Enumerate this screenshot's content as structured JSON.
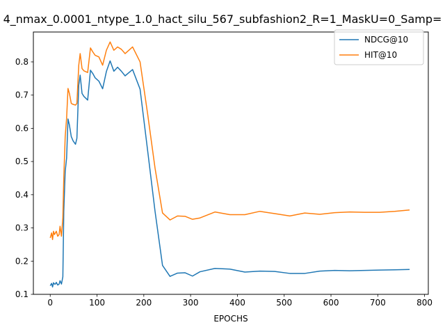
{
  "chart_data": {
    "type": "line",
    "title": "4_nmax_0.0001_ntype_1.0_hact_silu_567_subfashion2_R=1_MaskU=0_Samp=",
    "xlabel": "EPOCHS",
    "ylabel": "",
    "xlim": [
      -36,
      808
    ],
    "ylim": [
      0.1,
      0.89
    ],
    "xticks": [
      0,
      100,
      200,
      300,
      400,
      500,
      600,
      700,
      800
    ],
    "yticks": [
      0.1,
      0.2,
      0.3,
      0.4,
      0.5,
      0.6,
      0.7,
      0.8
    ],
    "xtick_labels": [
      "0",
      "100",
      "200",
      "300",
      "400",
      "500",
      "600",
      "700",
      "800"
    ],
    "ytick_labels": [
      "0.1",
      "0.2",
      "0.3",
      "0.4",
      "0.5",
      "0.6",
      "0.7",
      "0.8"
    ],
    "grid": false,
    "legend": "top-right",
    "series": [
      {
        "name": "NDCG@10",
        "color": "#1f77b4",
        "x": [
          0,
          3,
          5,
          7,
          9,
          11,
          13,
          16,
          19,
          21,
          24,
          27,
          29,
          32,
          35,
          38,
          41,
          45,
          49,
          54,
          57,
          61,
          64,
          68,
          72,
          80,
          86,
          91,
          96,
          104,
          112,
          120,
          128,
          136,
          144,
          152,
          160,
          176,
          192,
          208,
          224,
          240,
          256,
          272,
          288,
          304,
          320,
          352,
          384,
          416,
          448,
          480,
          512,
          544,
          576,
          608,
          640,
          672,
          704,
          736,
          768
        ],
        "y": [
          0.126,
          0.133,
          0.122,
          0.135,
          0.131,
          0.131,
          0.136,
          0.128,
          0.131,
          0.141,
          0.131,
          0.153,
          0.35,
          0.47,
          0.51,
          0.628,
          0.61,
          0.575,
          0.562,
          0.552,
          0.57,
          0.73,
          0.76,
          0.705,
          0.696,
          0.685,
          0.775,
          0.765,
          0.752,
          0.742,
          0.719,
          0.771,
          0.803,
          0.772,
          0.784,
          0.772,
          0.758,
          0.777,
          0.718,
          0.535,
          0.35,
          0.187,
          0.154,
          0.164,
          0.165,
          0.155,
          0.168,
          0.178,
          0.176,
          0.167,
          0.17,
          0.169,
          0.163,
          0.163,
          0.17,
          0.172,
          0.171,
          0.172,
          0.173,
          0.174,
          0.175
        ]
      },
      {
        "name": "HIT@10",
        "color": "#ff7f0e",
        "x": [
          0,
          3,
          5,
          7,
          9,
          11,
          13,
          16,
          19,
          21,
          24,
          27,
          29,
          32,
          35,
          38,
          41,
          45,
          49,
          54,
          57,
          61,
          64,
          68,
          72,
          80,
          86,
          91,
          96,
          104,
          112,
          120,
          128,
          136,
          144,
          152,
          160,
          176,
          192,
          208,
          224,
          240,
          256,
          272,
          288,
          304,
          320,
          352,
          384,
          416,
          448,
          480,
          512,
          544,
          576,
          608,
          640,
          672,
          704,
          736,
          768
        ],
        "y": [
          0.27,
          0.285,
          0.265,
          0.29,
          0.28,
          0.285,
          0.29,
          0.275,
          0.28,
          0.305,
          0.275,
          0.33,
          0.45,
          0.575,
          0.63,
          0.72,
          0.705,
          0.675,
          0.672,
          0.67,
          0.675,
          0.79,
          0.825,
          0.78,
          0.773,
          0.768,
          0.842,
          0.83,
          0.82,
          0.815,
          0.79,
          0.835,
          0.86,
          0.835,
          0.845,
          0.838,
          0.825,
          0.845,
          0.8,
          0.645,
          0.48,
          0.345,
          0.324,
          0.336,
          0.335,
          0.326,
          0.33,
          0.348,
          0.34,
          0.34,
          0.35,
          0.343,
          0.336,
          0.345,
          0.341,
          0.346,
          0.348,
          0.347,
          0.347,
          0.35,
          0.354
        ]
      }
    ]
  }
}
